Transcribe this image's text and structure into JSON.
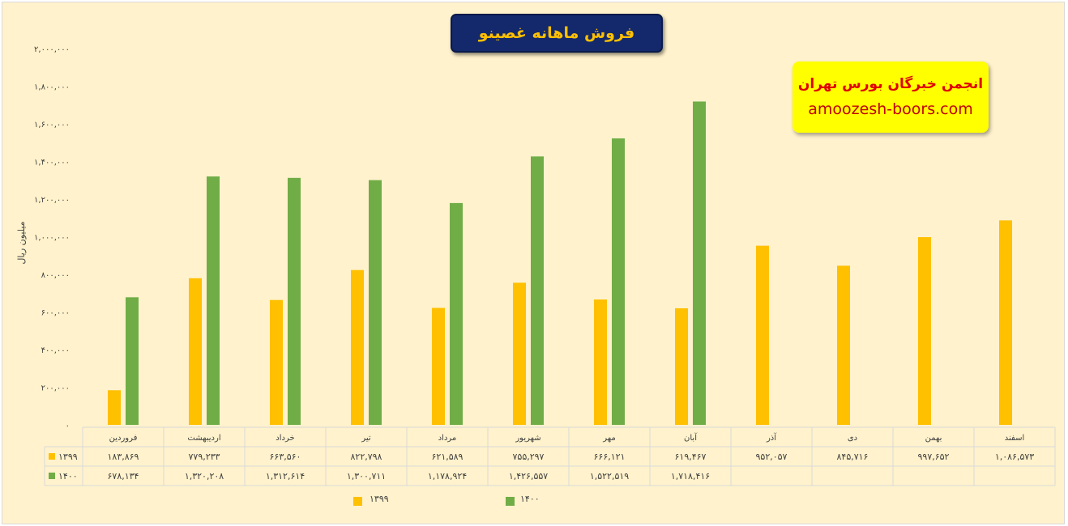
{
  "title": "فروش ماهانه غصینو",
  "brand": {
    "name": "انجمن خبرگان بورس تهران",
    "url": "amoozesh-boors.com"
  },
  "colors": {
    "series_1399": "#ffc000",
    "series_1400": "#70ad47",
    "background": "#fff2cc",
    "title_bg": "#13296b",
    "title_text": "#ffc000",
    "brand_bg": "#ffff00",
    "brand_text": "#e00000"
  },
  "chart_data": {
    "type": "bar",
    "ylabel": "میلیون ریال",
    "ylim": [
      0,
      2000000
    ],
    "yticks": [
      0,
      200000,
      400000,
      600000,
      800000,
      1000000,
      1200000,
      1400000,
      1600000,
      1800000,
      2000000
    ],
    "ytick_labels": [
      "۰",
      "۲۰۰,۰۰۰",
      "۴۰۰,۰۰۰",
      "۶۰۰,۰۰۰",
      "۸۰۰,۰۰۰",
      "۱,۰۰۰,۰۰۰",
      "۱,۲۰۰,۰۰۰",
      "۱,۴۰۰,۰۰۰",
      "۱,۶۰۰,۰۰۰",
      "۱,۸۰۰,۰۰۰",
      "۲,۰۰۰,۰۰۰"
    ],
    "categories": [
      "فروردین",
      "اردیبهشت",
      "خرداد",
      "تیر",
      "مرداد",
      "شهریور",
      "مهر",
      "آبان",
      "آذر",
      "دی",
      "بهمن",
      "اسفند"
    ],
    "grid": false,
    "legend_position": "bottom",
    "series": [
      {
        "name": "۱۳۹۹",
        "values": [
          183869,
          779233,
          663560,
          822798,
          621589,
          755297,
          666121,
          619467,
          952057,
          845716,
          997652,
          1086573
        ],
        "labels": [
          "۱۸۳,۸۶۹",
          "۷۷۹,۲۳۳",
          "۶۶۳,۵۶۰",
          "۸۲۲,۷۹۸",
          "۶۲۱,۵۸۹",
          "۷۵۵,۲۹۷",
          "۶۶۶,۱۲۱",
          "۶۱۹,۴۶۷",
          "۹۵۲,۰۵۷",
          "۸۴۵,۷۱۶",
          "۹۹۷,۶۵۲",
          "۱,۰۸۶,۵۷۳"
        ]
      },
      {
        "name": "۱۴۰۰",
        "values": [
          678134,
          1320208,
          1312614,
          1300711,
          1178924,
          1426557,
          1522519,
          1718416,
          null,
          null,
          null,
          null
        ],
        "labels": [
          "۶۷۸,۱۳۴",
          "۱,۳۲۰,۲۰۸",
          "۱,۳۱۲,۶۱۴",
          "۱,۳۰۰,۷۱۱",
          "۱,۱۷۸,۹۲۴",
          "۱,۴۲۶,۵۵۷",
          "۱,۵۲۲,۵۱۹",
          "۱,۷۱۸,۴۱۶",
          "",
          "",
          "",
          ""
        ]
      }
    ]
  }
}
